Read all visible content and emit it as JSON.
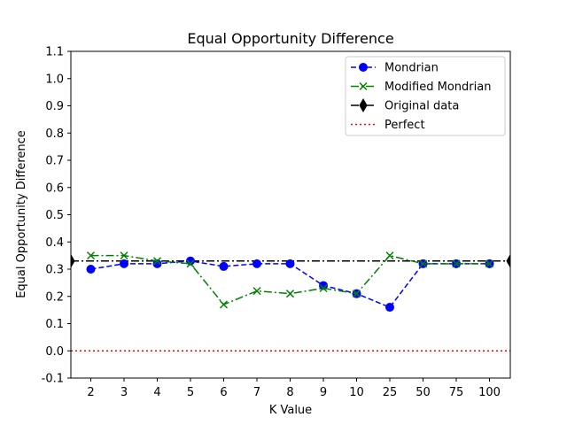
{
  "chart_data": {
    "type": "line",
    "title": "Equal Opportunity Difference",
    "xlabel": "K Value",
    "ylabel": "Equal Opportunity Difference",
    "categories": [
      "2",
      "3",
      "4",
      "5",
      "6",
      "7",
      "8",
      "9",
      "10",
      "25",
      "50",
      "75",
      "100"
    ],
    "ylim": [
      -0.1,
      1.1
    ],
    "yticks": [
      "-0.1",
      "0.0",
      "0.1",
      "0.2",
      "0.3",
      "0.4",
      "0.5",
      "0.6",
      "0.7",
      "0.8",
      "0.9",
      "1.0",
      "1.1"
    ],
    "grid": false,
    "legend_position": "top-right",
    "series": [
      {
        "name": "Mondrian",
        "color": "#0000ff",
        "line_style": "dashed",
        "marker": "circle",
        "values": [
          0.3,
          0.32,
          0.32,
          0.33,
          0.31,
          0.32,
          0.32,
          0.24,
          0.21,
          0.16,
          0.32,
          0.32,
          0.32
        ]
      },
      {
        "name": "Modified Mondrian",
        "color": "#008000",
        "line_style": "dash-dot",
        "marker": "x",
        "values": [
          0.35,
          0.35,
          0.33,
          0.32,
          0.17,
          0.22,
          0.21,
          0.23,
          0.21,
          0.35,
          0.32,
          0.32,
          0.32
        ]
      },
      {
        "name": "Original data",
        "color": "#000000",
        "line_style": "dash-dot",
        "marker": "thin-diamond",
        "reference_value": 0.33
      },
      {
        "name": "Perfect",
        "color": "#ff0000",
        "line_style": "dotted",
        "marker": "none",
        "reference_value": 0.0
      }
    ]
  }
}
